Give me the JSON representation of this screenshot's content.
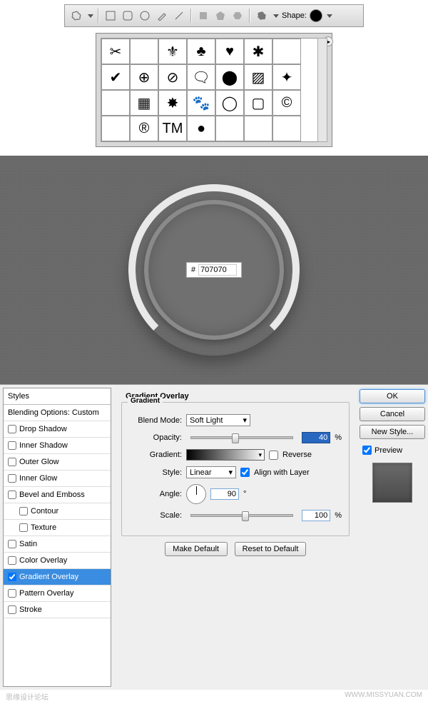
{
  "watermark": {
    "left": "思缘设计论坛",
    "right": "WWW.MISSYUAN.COM"
  },
  "toolbar": {
    "shapeLabel": "Shape:",
    "icons": [
      "blob",
      "rect",
      "rrect",
      "ellipse",
      "pen",
      "freeform",
      "path1",
      "path2",
      "hex",
      "custom"
    ]
  },
  "shapes": {
    "cells": [
      "✂",
      "",
      "⚜",
      "♣",
      "♥",
      "✱",
      "",
      "✔",
      "⊕",
      "⊘",
      "🗨",
      "⬤",
      "▨",
      "✦",
      "",
      "▦",
      "✸",
      "🐾",
      "◯",
      "▢",
      "©",
      "",
      "®",
      "TM",
      "●",
      "",
      "",
      ""
    ]
  },
  "dial": {
    "hexPrefix": "#",
    "hexValue": "707070",
    "fillColor": "#707070"
  },
  "dialog": {
    "stylesHeader": "Styles",
    "blendingHeader": "Blending Options: Custom",
    "effects": [
      {
        "label": "Drop Shadow",
        "checked": false
      },
      {
        "label": "Inner Shadow",
        "checked": false
      },
      {
        "label": "Outer Glow",
        "checked": false
      },
      {
        "label": "Inner Glow",
        "checked": false
      },
      {
        "label": "Bevel and Emboss",
        "checked": false
      },
      {
        "label": "Contour",
        "checked": false,
        "sub": true
      },
      {
        "label": "Texture",
        "checked": false,
        "sub": true
      },
      {
        "label": "Satin",
        "checked": false
      },
      {
        "label": "Color Overlay",
        "checked": false
      },
      {
        "label": "Gradient Overlay",
        "checked": true,
        "selected": true
      },
      {
        "label": "Pattern Overlay",
        "checked": false
      },
      {
        "label": "Stroke",
        "checked": false
      }
    ],
    "panelTitle": "Gradient Overlay",
    "groupTitle": "Gradient",
    "labels": {
      "blendMode": "Blend Mode:",
      "opacity": "Opacity:",
      "gradient": "Gradient:",
      "reverse": "Reverse",
      "style": "Style:",
      "align": "Align with Layer",
      "angle": "Angle:",
      "scale": "Scale:",
      "pct": "%",
      "deg": "°"
    },
    "values": {
      "blendMode": "Soft Light",
      "opacity": "40",
      "style": "Linear",
      "alignChecked": true,
      "reverseChecked": false,
      "angle": "90",
      "scale": "100"
    },
    "buttons": {
      "makeDefault": "Make Default",
      "resetDefault": "Reset to Default",
      "ok": "OK",
      "cancel": "Cancel",
      "newStyle": "New Style...",
      "preview": "Preview"
    },
    "sliders": {
      "opacityPos": "40%",
      "scalePos": "50%"
    }
  }
}
